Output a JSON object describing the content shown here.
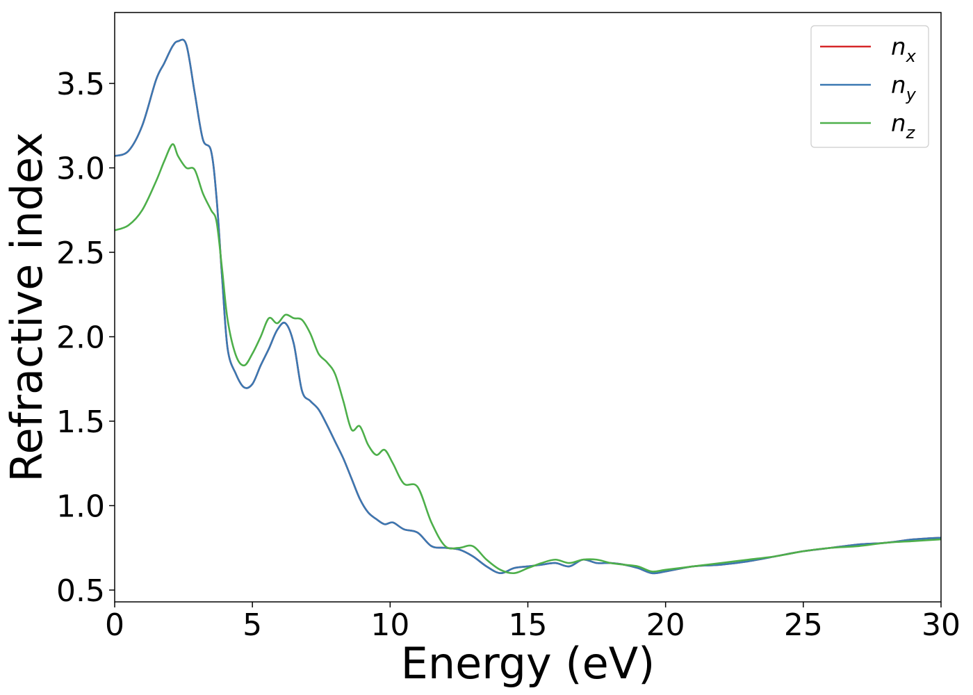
{
  "chart_data": {
    "type": "line",
    "title": "",
    "xlabel": "Energy (eV)",
    "ylabel": "Refractive index",
    "xlim": [
      0,
      30
    ],
    "ylim": [
      0.43,
      3.92
    ],
    "xticks": [
      "0",
      "5",
      "10",
      "15",
      "20",
      "25",
      "30"
    ],
    "yticks": [
      "0.5",
      "1.0",
      "1.5",
      "2.0",
      "2.5",
      "3.0",
      "3.5"
    ],
    "grid": false,
    "legend_position": "top-right",
    "series": [
      {
        "name": "n_x",
        "label_base": "n",
        "label_sub": "x",
        "color": "#d62728",
        "x": [
          0,
          0.5,
          1.0,
          1.5,
          1.8,
          2.1,
          2.3,
          2.6,
          2.9,
          3.2,
          3.5,
          3.7,
          3.9,
          4.1,
          4.4,
          4.7,
          5.0,
          5.3,
          5.6,
          5.9,
          6.2,
          6.5,
          6.8,
          7.1,
          7.4,
          7.7,
          8.0,
          8.3,
          8.6,
          8.9,
          9.2,
          9.5,
          9.8,
          10.1,
          10.5,
          11.0,
          11.5,
          12.0,
          12.5,
          13.0,
          13.5,
          14.0,
          14.5,
          15.0,
          15.5,
          16.0,
          16.5,
          17.0,
          17.5,
          18.0,
          18.5,
          19.0,
          19.5,
          20.0,
          21.0,
          22.0,
          23.0,
          24.0,
          25.0,
          26.0,
          27.0,
          28.0,
          29.0,
          30.0
        ],
        "values": [
          3.07,
          3.1,
          3.25,
          3.52,
          3.62,
          3.72,
          3.75,
          3.73,
          3.45,
          3.17,
          3.1,
          2.82,
          2.35,
          1.93,
          1.78,
          1.7,
          1.72,
          1.83,
          1.93,
          2.04,
          2.08,
          1.96,
          1.68,
          1.62,
          1.57,
          1.48,
          1.38,
          1.28,
          1.16,
          1.04,
          0.96,
          0.92,
          0.89,
          0.9,
          0.86,
          0.84,
          0.76,
          0.75,
          0.74,
          0.7,
          0.64,
          0.6,
          0.63,
          0.64,
          0.65,
          0.66,
          0.64,
          0.68,
          0.66,
          0.66,
          0.65,
          0.63,
          0.6,
          0.61,
          0.64,
          0.65,
          0.67,
          0.7,
          0.73,
          0.75,
          0.77,
          0.78,
          0.8,
          0.81
        ]
      },
      {
        "name": "n_y",
        "label_base": "n",
        "label_sub": "y",
        "color": "#3a78b2",
        "x": [
          0,
          0.5,
          1.0,
          1.5,
          1.8,
          2.1,
          2.3,
          2.6,
          2.9,
          3.2,
          3.5,
          3.7,
          3.9,
          4.1,
          4.4,
          4.7,
          5.0,
          5.3,
          5.6,
          5.9,
          6.2,
          6.5,
          6.8,
          7.1,
          7.4,
          7.7,
          8.0,
          8.3,
          8.6,
          8.9,
          9.2,
          9.5,
          9.8,
          10.1,
          10.5,
          11.0,
          11.5,
          12.0,
          12.5,
          13.0,
          13.5,
          14.0,
          14.5,
          15.0,
          15.5,
          16.0,
          16.5,
          17.0,
          17.5,
          18.0,
          18.5,
          19.0,
          19.5,
          20.0,
          21.0,
          22.0,
          23.0,
          24.0,
          25.0,
          26.0,
          27.0,
          28.0,
          29.0,
          30.0
        ],
        "values": [
          3.07,
          3.1,
          3.25,
          3.52,
          3.62,
          3.72,
          3.75,
          3.73,
          3.45,
          3.17,
          3.1,
          2.82,
          2.35,
          1.93,
          1.78,
          1.7,
          1.72,
          1.83,
          1.93,
          2.04,
          2.08,
          1.96,
          1.68,
          1.62,
          1.57,
          1.48,
          1.38,
          1.28,
          1.16,
          1.04,
          0.96,
          0.92,
          0.89,
          0.9,
          0.86,
          0.84,
          0.76,
          0.75,
          0.74,
          0.7,
          0.64,
          0.6,
          0.63,
          0.64,
          0.65,
          0.66,
          0.64,
          0.68,
          0.66,
          0.66,
          0.65,
          0.63,
          0.6,
          0.61,
          0.64,
          0.65,
          0.67,
          0.7,
          0.73,
          0.75,
          0.77,
          0.78,
          0.8,
          0.81
        ]
      },
      {
        "name": "n_z",
        "label_base": "n",
        "label_sub": "z",
        "color": "#4daf4a",
        "x": [
          0,
          0.5,
          1.0,
          1.5,
          1.8,
          2.1,
          2.3,
          2.6,
          2.9,
          3.2,
          3.5,
          3.7,
          3.9,
          4.1,
          4.4,
          4.7,
          5.0,
          5.3,
          5.6,
          5.9,
          6.2,
          6.5,
          6.8,
          7.1,
          7.4,
          7.7,
          8.0,
          8.3,
          8.6,
          8.9,
          9.2,
          9.5,
          9.8,
          10.1,
          10.5,
          11.0,
          11.5,
          12.0,
          12.5,
          13.0,
          13.5,
          14.0,
          14.5,
          15.0,
          15.5,
          16.0,
          16.5,
          17.0,
          17.5,
          18.0,
          18.5,
          19.0,
          19.5,
          20.0,
          21.0,
          22.0,
          23.0,
          24.0,
          25.0,
          26.0,
          27.0,
          28.0,
          29.0,
          30.0
        ],
        "values": [
          2.63,
          2.66,
          2.75,
          2.92,
          3.04,
          3.14,
          3.07,
          3.0,
          2.99,
          2.85,
          2.75,
          2.68,
          2.4,
          2.1,
          1.89,
          1.83,
          1.9,
          2.0,
          2.11,
          2.08,
          2.13,
          2.11,
          2.1,
          2.02,
          1.9,
          1.85,
          1.78,
          1.62,
          1.45,
          1.47,
          1.36,
          1.3,
          1.33,
          1.25,
          1.13,
          1.11,
          0.9,
          0.76,
          0.75,
          0.76,
          0.68,
          0.62,
          0.6,
          0.63,
          0.66,
          0.68,
          0.66,
          0.68,
          0.68,
          0.66,
          0.65,
          0.64,
          0.61,
          0.62,
          0.64,
          0.66,
          0.68,
          0.7,
          0.73,
          0.75,
          0.76,
          0.78,
          0.79,
          0.8
        ]
      }
    ]
  }
}
